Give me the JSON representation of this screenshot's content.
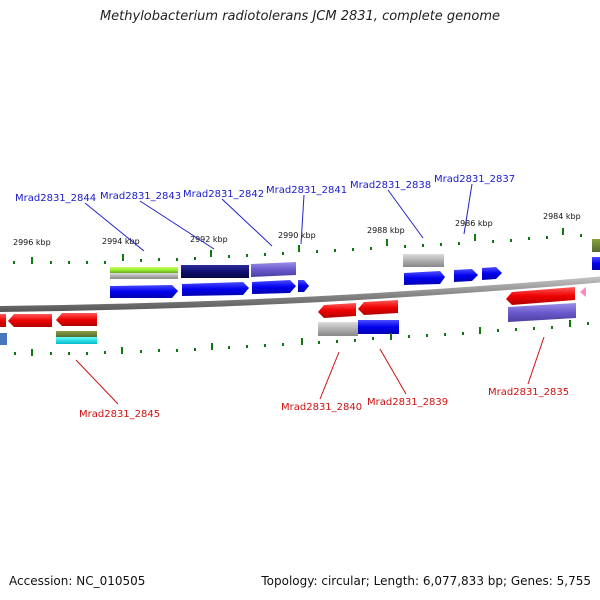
{
  "title": "Methylobacterium radiotolerans JCM 2831, complete genome",
  "footer": {
    "accession": "Accession: NC_010505",
    "summary": "Topology: circular; Length: 6,077,833 bp; Genes: 5,755"
  },
  "ticks": [
    "2996 kbp",
    "2994 kbp",
    "2992 kbp",
    "2990 kbp",
    "2988 kbp",
    "2986 kbp",
    "2984 kbp"
  ],
  "gene_labels_top": [
    "Mrad2831_2844",
    "Mrad2831_2843",
    "Mrad2831_2842",
    "Mrad2831_2841",
    "Mrad2831_2838",
    "Mrad2831_2837"
  ],
  "gene_labels_bottom": [
    "Mrad2831_2845",
    "Mrad2831_2840",
    "Mrad2831_2839",
    "Mrad2831_2835"
  ],
  "colors": {
    "forward_strand": "#0000ee",
    "reverse_strand": "#ee0000",
    "label_top": "#1a1acc",
    "label_bottom": "#cc1111",
    "tick": "#117711",
    "backbone": "#888888"
  }
}
